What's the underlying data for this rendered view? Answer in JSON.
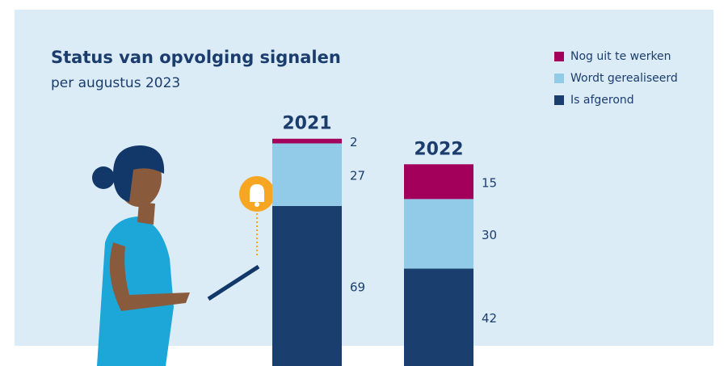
{
  "chart_data": {
    "type": "stacked-bar",
    "title": "Status van opvolging signalen",
    "subtitle": "per augustus 2023",
    "categories": [
      "2021",
      "2022"
    ],
    "series": [
      {
        "name": "Is afgerond",
        "color": "#1a3f6e",
        "values": [
          69,
          42
        ]
      },
      {
        "name": "Wordt gerealiseerd",
        "color": "#91cbe8",
        "values": [
          27,
          30
        ]
      },
      {
        "name": "Nog uit te werken",
        "color": "#a3005c",
        "values": [
          2,
          15
        ]
      }
    ],
    "ylim": [
      0,
      100
    ],
    "legend": "top-right"
  }
}
